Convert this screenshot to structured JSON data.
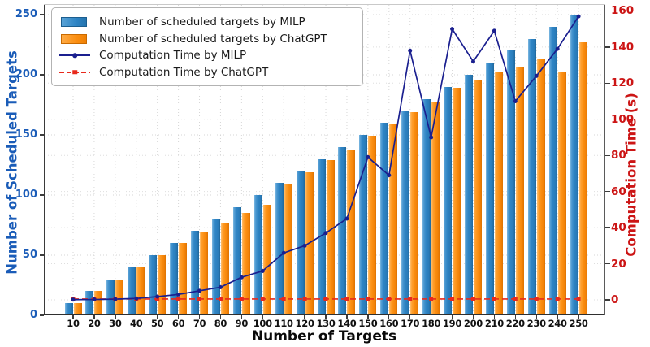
{
  "chart_data": {
    "type": "bar",
    "subtype": "grouped bars on left axis combined with line series on right axis",
    "title": "",
    "xlabel": "Number of Targets",
    "ylabel_left": "Number of Scheduled Targets",
    "ylabel_right": "Computation Time (s)",
    "categories": [
      10,
      20,
      30,
      40,
      50,
      60,
      70,
      80,
      90,
      100,
      110,
      120,
      130,
      140,
      150,
      160,
      170,
      180,
      190,
      200,
      210,
      220,
      230,
      240,
      250
    ],
    "series": [
      {
        "name": "Number of scheduled targets by MILP",
        "kind": "bar",
        "axis": "left",
        "color": "#2e84c4",
        "values": [
          10,
          20,
          30,
          40,
          50,
          60,
          70,
          80,
          90,
          100,
          110,
          120,
          130,
          140,
          150,
          160,
          170,
          180,
          190,
          200,
          210,
          220,
          230,
          240,
          250
        ]
      },
      {
        "name": "Number of scheduled targets by ChatGPT",
        "kind": "bar",
        "axis": "left",
        "color": "#fb8f12",
        "values": [
          10,
          20,
          30,
          40,
          50,
          60,
          69,
          77,
          85,
          92,
          109,
          119,
          129,
          138,
          149,
          159,
          169,
          178,
          189,
          196,
          203,
          207,
          213,
          203,
          227
        ]
      },
      {
        "name": "Computation Time by MILP",
        "kind": "line",
        "axis": "right",
        "color": "#1a1f8f",
        "marker": "circle",
        "line_style": "solid",
        "values": [
          0.1,
          0.2,
          0.4,
          0.8,
          1.8,
          3,
          5,
          7,
          12.5,
          16,
          26,
          30,
          37,
          45,
          79,
          69,
          138,
          90,
          150,
          132,
          149,
          110,
          124,
          139,
          157
        ]
      },
      {
        "name": "Computation Time by ChatGPT",
        "kind": "line",
        "axis": "right",
        "color": "#e8291c",
        "marker": "square",
        "line_style": "dashed",
        "values": [
          0.5,
          0.5,
          0.5,
          0.5,
          0.5,
          0.5,
          0.5,
          0.5,
          0.5,
          0.5,
          0.5,
          0.5,
          0.5,
          0.5,
          0.5,
          0.5,
          0.5,
          0.5,
          0.5,
          0.5,
          0.5,
          0.5,
          0.5,
          0.5,
          0.5
        ]
      }
    ],
    "left_axis": {
      "ticks": [
        0,
        50,
        100,
        150,
        200,
        250
      ],
      "color": "#1a5cb8"
    },
    "right_axis": {
      "ticks": [
        0,
        20,
        40,
        60,
        80,
        100,
        120,
        140,
        160
      ],
      "color": "#cc1515"
    },
    "grid": true,
    "legend_position": "upper left"
  },
  "legend": {
    "items": [
      {
        "label": "Number of scheduled targets by MILP"
      },
      {
        "label": "Number of scheduled targets by ChatGPT"
      },
      {
        "label": "Computation Time by MILP"
      },
      {
        "label": "Computation Time by ChatGPT"
      }
    ]
  }
}
